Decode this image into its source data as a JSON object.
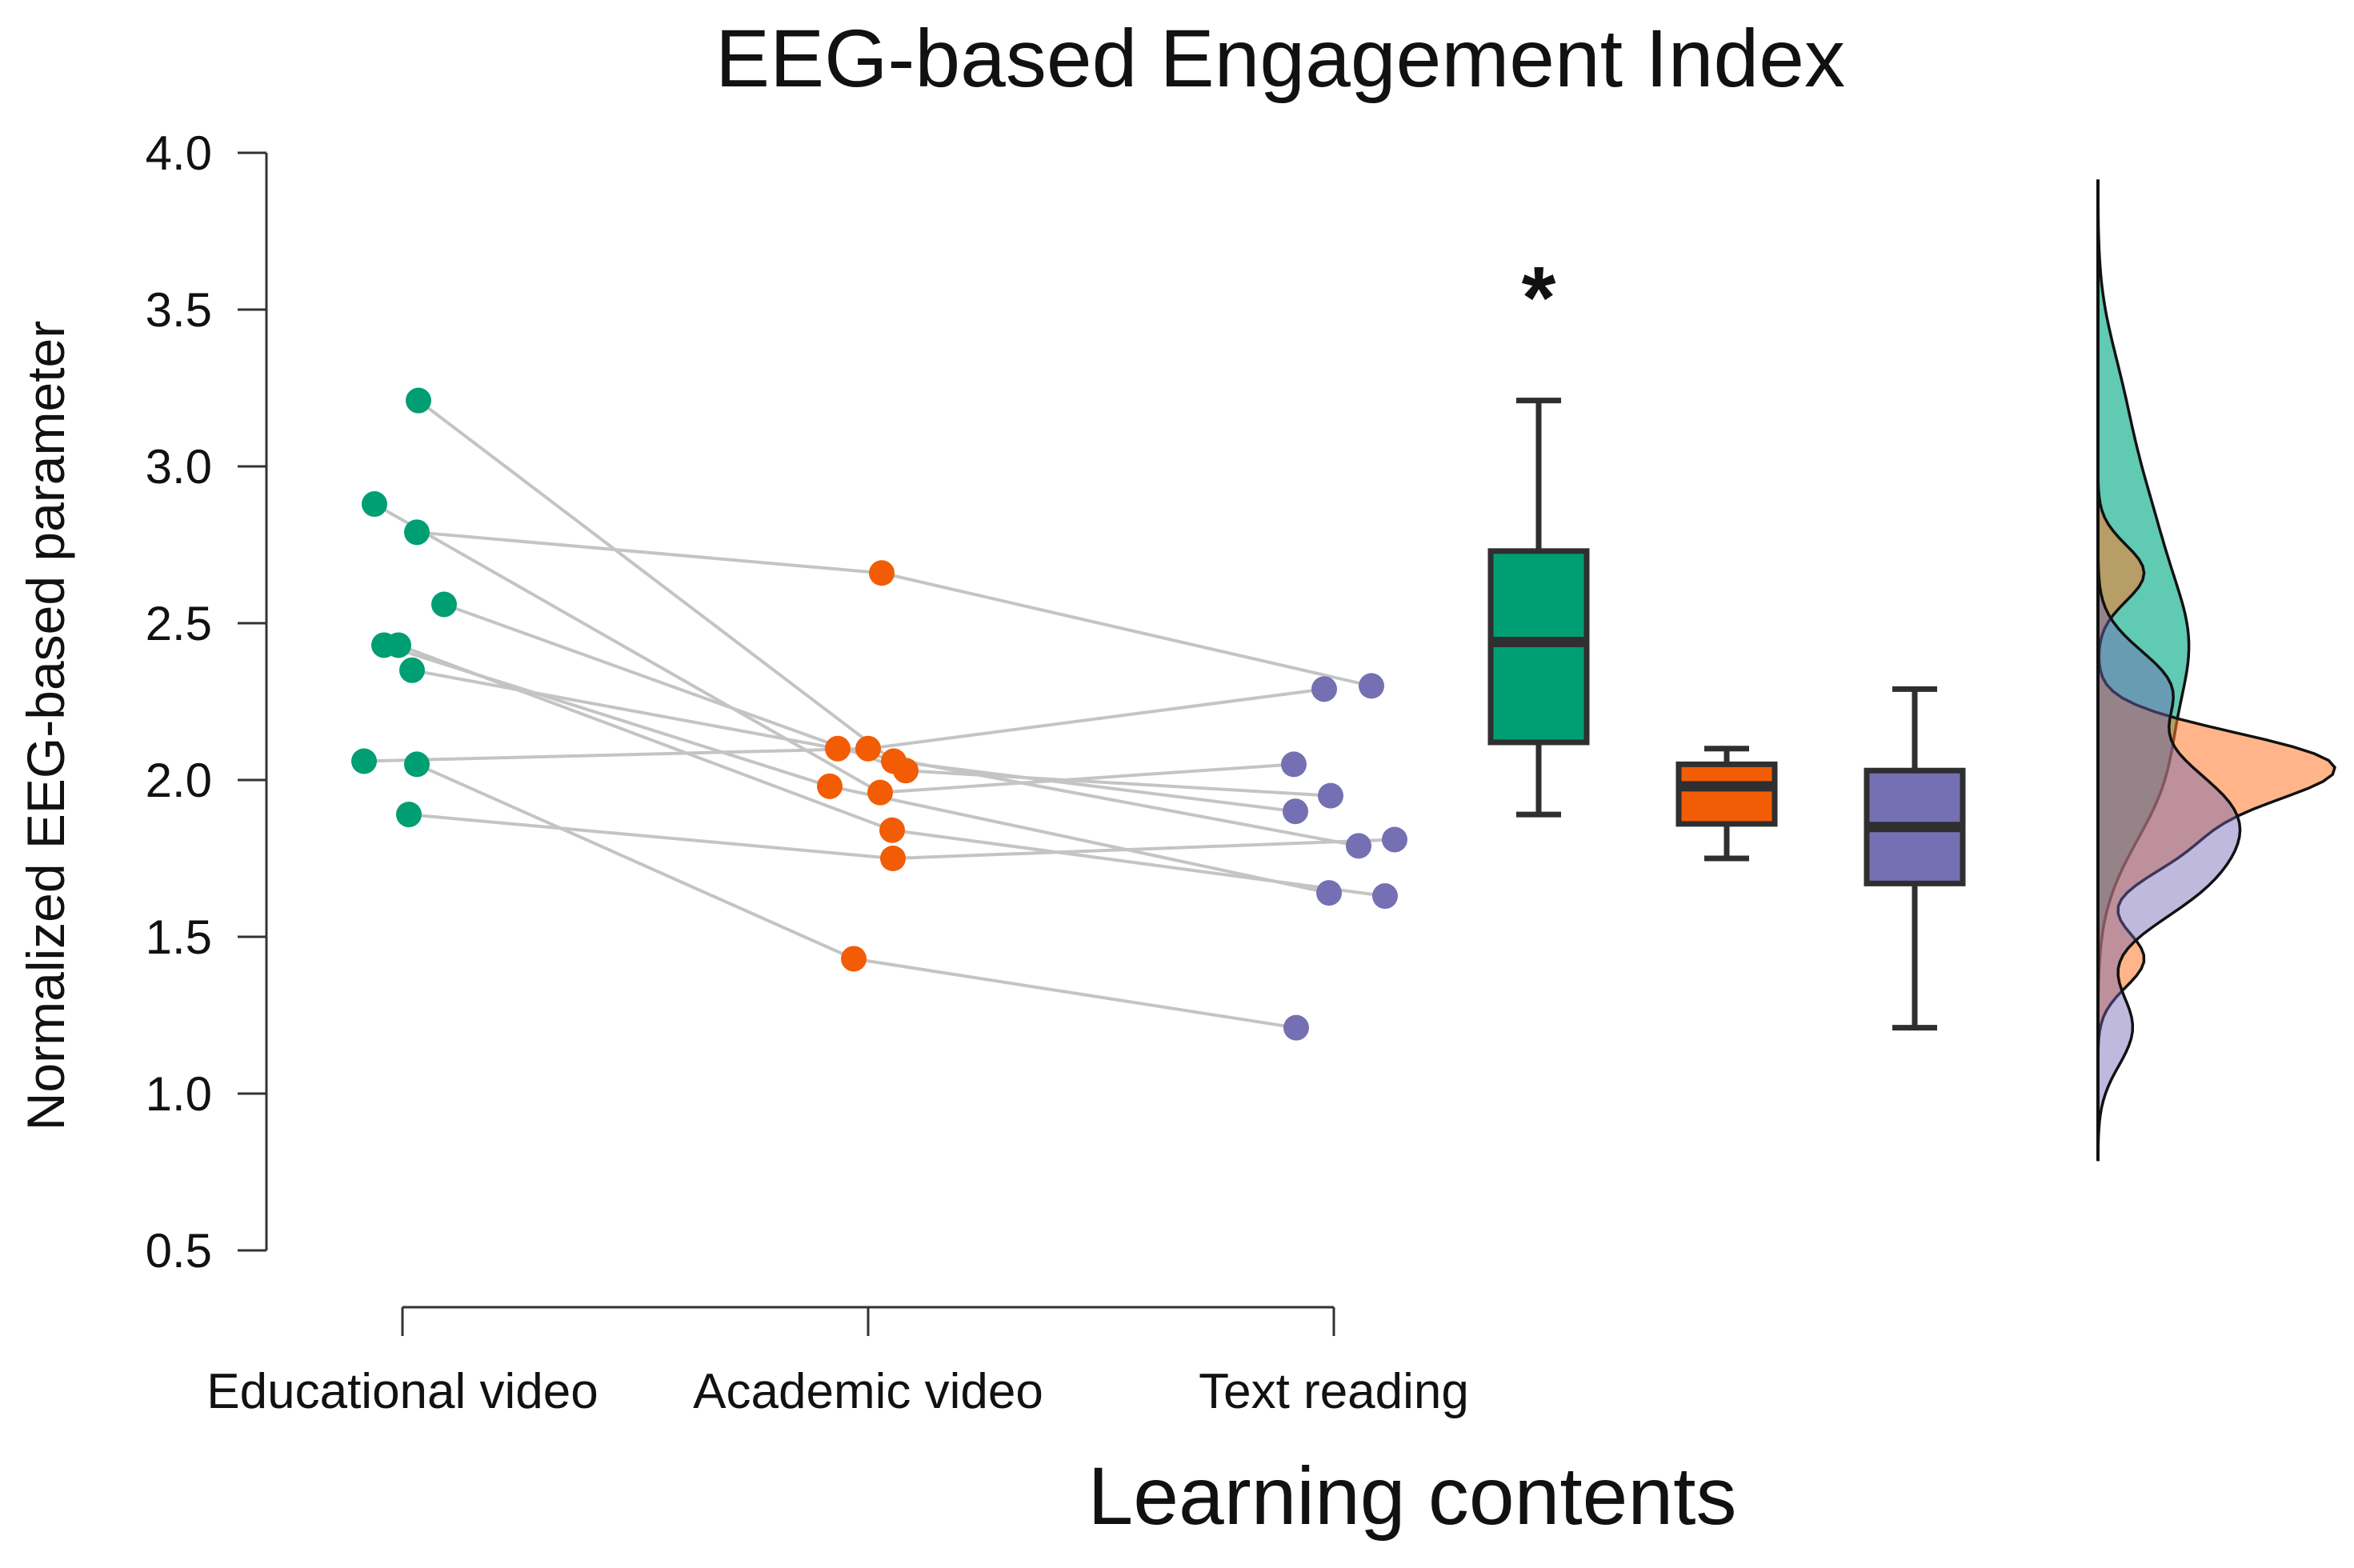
{
  "chart_data": {
    "type": "raincloud",
    "title": "EEG-based Engagement Index",
    "xlabel": "Learning contents",
    "ylabel": "Normalized EEG-based parameter",
    "ylim": [
      0.5,
      4.0
    ],
    "yticks": [
      "0.5",
      "1.0",
      "1.5",
      "2.0",
      "2.5",
      "3.0",
      "3.5",
      "4.0"
    ],
    "categories": [
      "Educational video",
      "Academic video",
      "Text reading"
    ],
    "colors": [
      "#009E73",
      "#F25C05",
      "#7570B3"
    ],
    "significance": {
      "label": "*",
      "group": "Educational video"
    },
    "subjects": [
      {
        "values": [
          3.21,
          2.06,
          1.9
        ]
      },
      {
        "values": [
          2.79,
          2.66,
          2.3
        ]
      },
      {
        "values": [
          2.56,
          2.03,
          1.95
        ]
      },
      {
        "values": [
          2.43,
          1.98,
          1.64
        ]
      },
      {
        "values": [
          2.43,
          1.84,
          1.63
        ]
      },
      {
        "values": [
          2.35,
          2.1,
          1.79
        ]
      },
      {
        "values": [
          2.06,
          2.1,
          2.29
        ]
      },
      {
        "values": [
          2.05,
          1.43,
          1.21
        ]
      },
      {
        "values": [
          1.89,
          1.75,
          1.81
        ]
      },
      {
        "values": [
          2.88,
          1.96,
          2.05
        ]
      }
    ],
    "boxplots": [
      {
        "group": "Educational video",
        "min": 1.89,
        "q1": 2.12,
        "median": 2.44,
        "q3": 2.73,
        "max": 3.21
      },
      {
        "group": "Academic video",
        "min": 1.75,
        "q1": 1.86,
        "median": 1.98,
        "q3": 2.05,
        "max": 2.1
      },
      {
        "group": "Text reading",
        "min": 1.21,
        "q1": 1.67,
        "median": 1.85,
        "q3": 2.03,
        "max": 2.29
      }
    ]
  }
}
